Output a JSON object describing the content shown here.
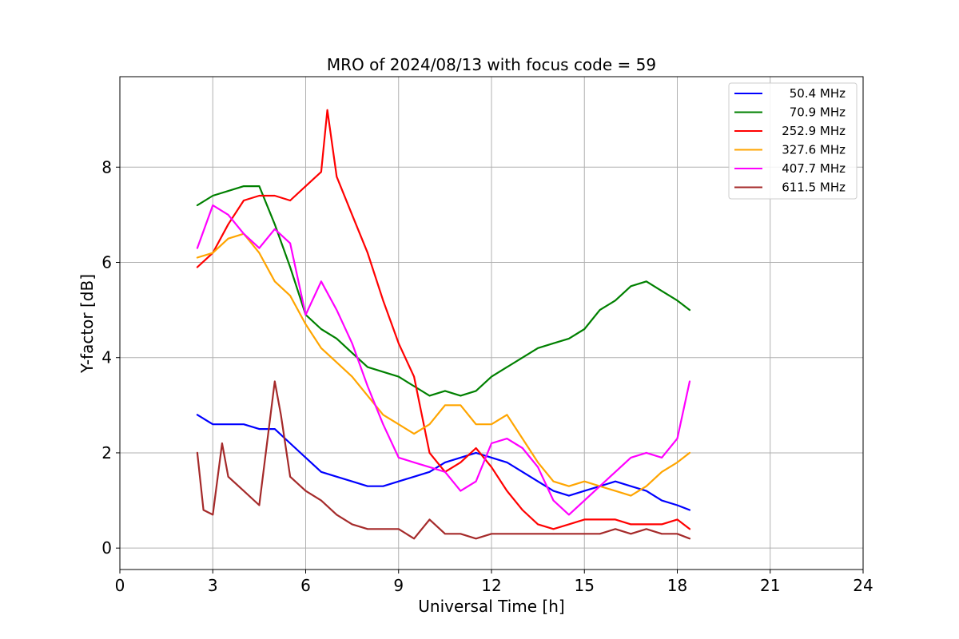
{
  "chart_data": {
    "type": "line",
    "title": "MRO of 2024/08/13 with focus code = 59",
    "xlabel": "Universal Time [h]",
    "ylabel": "Y-factor [dB]",
    "xlim": [
      0,
      24
    ],
    "ylim": [
      -0.45,
      9.9
    ],
    "xticks": [
      0,
      3,
      6,
      9,
      12,
      15,
      18,
      21,
      24
    ],
    "yticks": [
      0,
      2,
      4,
      6,
      8
    ],
    "grid": true,
    "legend_position": "top-right",
    "series": [
      {
        "name": "50.4 MHz",
        "color": "#0000ff",
        "x": [
          2.5,
          3.0,
          3.5,
          4.0,
          4.5,
          5.0,
          5.5,
          6.0,
          6.5,
          7.0,
          7.5,
          8.0,
          8.5,
          9.0,
          9.5,
          10.0,
          10.5,
          11.0,
          11.5,
          12.0,
          12.5,
          13.0,
          13.5,
          14.0,
          14.5,
          15.0,
          15.5,
          16.0,
          16.5,
          17.0,
          17.5,
          18.0,
          18.4
        ],
        "y": [
          2.8,
          2.6,
          2.6,
          2.6,
          2.5,
          2.5,
          2.2,
          1.9,
          1.6,
          1.5,
          1.4,
          1.3,
          1.3,
          1.4,
          1.5,
          1.6,
          1.8,
          1.9,
          2.0,
          1.9,
          1.8,
          1.6,
          1.4,
          1.2,
          1.1,
          1.2,
          1.3,
          1.4,
          1.3,
          1.2,
          1.0,
          0.9,
          0.8
        ]
      },
      {
        "name": "70.9 MHz",
        "color": "#008000",
        "x": [
          2.5,
          3.0,
          3.5,
          4.0,
          4.5,
          5.0,
          5.5,
          6.0,
          6.5,
          7.0,
          7.5,
          8.0,
          8.5,
          9.0,
          9.5,
          10.0,
          10.5,
          11.0,
          11.5,
          12.0,
          12.5,
          13.0,
          13.5,
          14.0,
          14.5,
          15.0,
          15.5,
          16.0,
          16.5,
          17.0,
          17.5,
          18.0,
          18.4
        ],
        "y": [
          7.2,
          7.4,
          7.5,
          7.6,
          7.6,
          6.8,
          5.9,
          4.9,
          4.6,
          4.4,
          4.1,
          3.8,
          3.7,
          3.6,
          3.4,
          3.2,
          3.3,
          3.2,
          3.3,
          3.6,
          3.8,
          4.0,
          4.2,
          4.3,
          4.4,
          4.6,
          5.0,
          5.2,
          5.5,
          5.6,
          5.4,
          5.2,
          5.0
        ]
      },
      {
        "name": "252.9 MHz",
        "color": "#ff0000",
        "x": [
          2.5,
          3.0,
          3.5,
          4.0,
          4.5,
          5.0,
          5.5,
          6.0,
          6.5,
          6.7,
          7.0,
          7.5,
          8.0,
          8.5,
          9.0,
          9.5,
          10.0,
          10.5,
          11.0,
          11.5,
          12.0,
          12.5,
          13.0,
          13.5,
          14.0,
          14.5,
          15.0,
          15.5,
          16.0,
          16.5,
          17.0,
          17.5,
          18.0,
          18.4
        ],
        "y": [
          5.9,
          6.2,
          6.8,
          7.3,
          7.4,
          7.4,
          7.3,
          7.6,
          7.9,
          9.2,
          7.8,
          7.0,
          6.2,
          5.2,
          4.3,
          3.6,
          2.0,
          1.6,
          1.8,
          2.1,
          1.7,
          1.2,
          0.8,
          0.5,
          0.4,
          0.5,
          0.6,
          0.6,
          0.6,
          0.5,
          0.5,
          0.5,
          0.6,
          0.4
        ]
      },
      {
        "name": "327.6 MHz",
        "color": "#ffa500",
        "x": [
          2.5,
          3.0,
          3.5,
          4.0,
          4.5,
          5.0,
          5.5,
          6.0,
          6.5,
          7.0,
          7.5,
          8.0,
          8.5,
          9.0,
          9.5,
          10.0,
          10.5,
          11.0,
          11.5,
          12.0,
          12.5,
          13.0,
          13.5,
          14.0,
          14.5,
          15.0,
          15.5,
          16.0,
          16.5,
          17.0,
          17.5,
          18.0,
          18.4
        ],
        "y": [
          6.1,
          6.2,
          6.5,
          6.6,
          6.2,
          5.6,
          5.3,
          4.7,
          4.2,
          3.9,
          3.6,
          3.2,
          2.8,
          2.6,
          2.4,
          2.6,
          3.0,
          3.0,
          2.6,
          2.6,
          2.8,
          2.3,
          1.8,
          1.4,
          1.3,
          1.4,
          1.3,
          1.2,
          1.1,
          1.3,
          1.6,
          1.8,
          2.0
        ]
      },
      {
        "name": "407.7 MHz",
        "color": "#ff00ff",
        "x": [
          2.5,
          3.0,
          3.5,
          4.0,
          4.5,
          5.0,
          5.5,
          6.0,
          6.5,
          7.0,
          7.5,
          8.0,
          8.5,
          9.0,
          9.5,
          10.0,
          10.5,
          11.0,
          11.5,
          12.0,
          12.5,
          13.0,
          13.5,
          14.0,
          14.5,
          15.0,
          15.5,
          16.0,
          16.5,
          17.0,
          17.5,
          18.0,
          18.4
        ],
        "y": [
          6.3,
          7.2,
          7.0,
          6.6,
          6.3,
          6.7,
          6.4,
          4.9,
          5.6,
          5.0,
          4.3,
          3.4,
          2.6,
          1.9,
          1.8,
          1.7,
          1.6,
          1.2,
          1.4,
          2.2,
          2.3,
          2.1,
          1.7,
          1.0,
          0.7,
          1.0,
          1.3,
          1.6,
          1.9,
          2.0,
          1.9,
          2.3,
          3.5
        ]
      },
      {
        "name": "611.5 MHz",
        "color": "#a52a2a",
        "x": [
          2.5,
          2.7,
          3.0,
          3.3,
          3.5,
          4.0,
          4.5,
          5.0,
          5.2,
          5.5,
          6.0,
          6.5,
          7.0,
          7.5,
          8.0,
          8.5,
          9.0,
          9.5,
          10.0,
          10.5,
          11.0,
          11.5,
          12.0,
          12.5,
          13.0,
          13.5,
          14.0,
          14.5,
          15.0,
          15.5,
          16.0,
          16.5,
          17.0,
          17.5,
          18.0,
          18.4
        ],
        "y": [
          2.0,
          0.8,
          0.7,
          2.2,
          1.5,
          1.2,
          0.9,
          3.5,
          2.8,
          1.5,
          1.2,
          1.0,
          0.7,
          0.5,
          0.4,
          0.4,
          0.4,
          0.2,
          0.6,
          0.3,
          0.3,
          0.2,
          0.3,
          0.3,
          0.3,
          0.3,
          0.3,
          0.3,
          0.3,
          0.3,
          0.4,
          0.3,
          0.4,
          0.3,
          0.3,
          0.2
        ]
      }
    ]
  }
}
